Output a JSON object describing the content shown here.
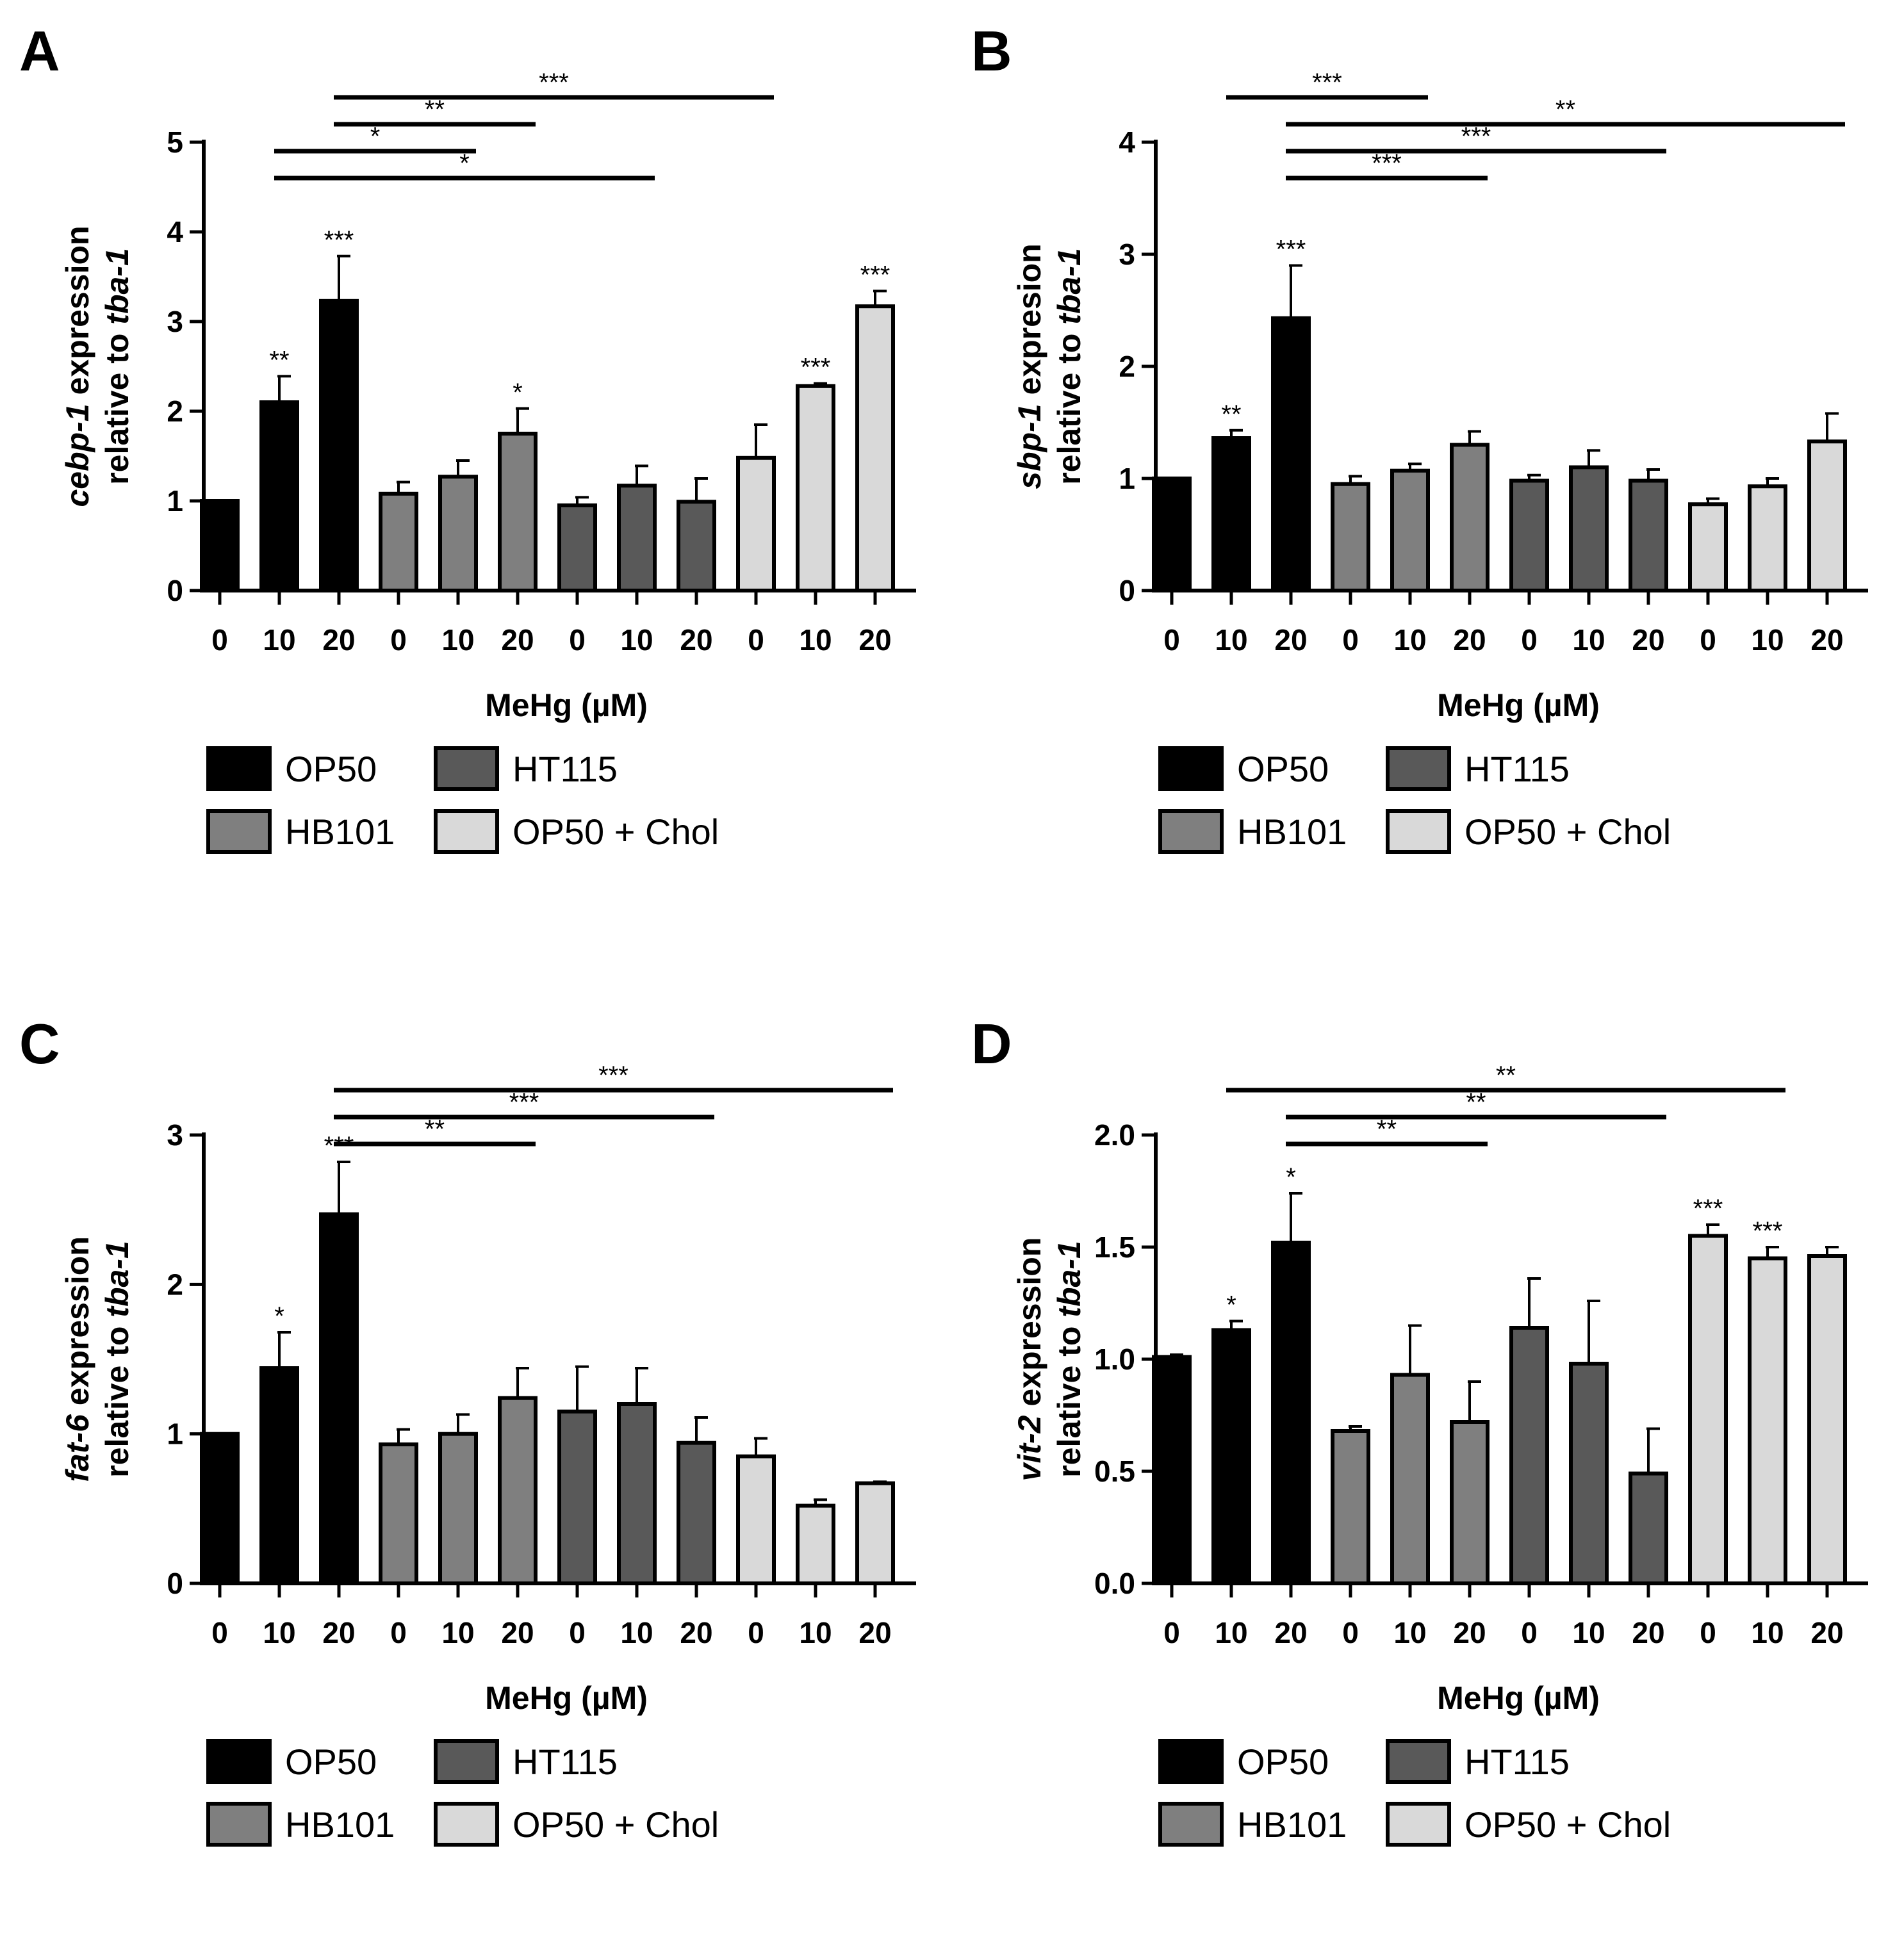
{
  "xlabel": "MeHg (µM)",
  "groups": [
    {
      "name": "OP50",
      "color": "#000000"
    },
    {
      "name": "HB101",
      "color": "#7f7f7f"
    },
    {
      "name": "HT115",
      "color": "#595959"
    },
    {
      "name": "OP50 + Chol",
      "color": "#d9d9d9"
    }
  ],
  "chart_data": [
    {
      "panel": "A",
      "type": "bar",
      "ylabel_gene": "cebp-1",
      "ylabel_rest1": " expression",
      "ylabel_line2_prefix": "relative to ",
      "ylabel_ref": "tba-1",
      "categories": [
        "0",
        "10",
        "20",
        "0",
        "10",
        "20",
        "0",
        "10",
        "20",
        "0",
        "10",
        "20"
      ],
      "category_groups": [
        "OP50",
        "OP50",
        "OP50",
        "HB101",
        "HB101",
        "HB101",
        "HT115",
        "HT115",
        "HT115",
        "OP50 + Chol",
        "OP50 + Chol",
        "OP50 + Chol"
      ],
      "values": [
        1.0,
        2.1,
        3.23,
        1.08,
        1.27,
        1.75,
        0.95,
        1.17,
        0.99,
        1.48,
        2.28,
        3.17
      ],
      "errors": [
        0,
        0.29,
        0.5,
        0.13,
        0.18,
        0.28,
        0.09,
        0.22,
        0.26,
        0.37,
        0.03,
        0.17
      ],
      "significance": [
        "",
        "**",
        "***",
        "",
        "",
        "*",
        "",
        "",
        "",
        "",
        "***",
        "***"
      ],
      "ylim": [
        0,
        5
      ],
      "yticks": [
        "0",
        "1",
        "2",
        "3",
        "4",
        "5"
      ],
      "yticks_values": [
        0,
        1,
        2,
        3,
        4,
        5
      ],
      "brackets": [
        {
          "from": 2,
          "to": 9,
          "label": "***"
        },
        {
          "from": 2,
          "to": 5,
          "label": "**"
        },
        {
          "from": 1,
          "to": 4,
          "label": "*"
        },
        {
          "from": 1,
          "to": 7,
          "label": "*"
        }
      ]
    },
    {
      "panel": "B",
      "type": "bar",
      "ylabel_gene": "sbp-1",
      "ylabel_rest1": " expresion",
      "ylabel_line2_prefix": "relative to ",
      "ylabel_ref": "tba-1",
      "categories": [
        "0",
        "10",
        "20",
        "0",
        "10",
        "20",
        "0",
        "10",
        "20",
        "0",
        "10",
        "20"
      ],
      "category_groups": [
        "OP50",
        "OP50",
        "OP50",
        "HB101",
        "HB101",
        "HB101",
        "HT115",
        "HT115",
        "HT115",
        "OP50 + Chol",
        "OP50 + Chol",
        "OP50 + Chol"
      ],
      "values": [
        1.0,
        1.36,
        2.43,
        0.95,
        1.07,
        1.3,
        0.98,
        1.1,
        0.98,
        0.77,
        0.93,
        1.33
      ],
      "errors": [
        0,
        0.07,
        0.47,
        0.07,
        0.06,
        0.12,
        0.05,
        0.15,
        0.1,
        0.05,
        0.07,
        0.25
      ],
      "significance": [
        "",
        "**",
        "***",
        "",
        "",
        "",
        "",
        "",
        "",
        "",
        "",
        ""
      ],
      "ylim": [
        0,
        4
      ],
      "yticks": [
        "0",
        "1",
        "2",
        "3",
        "4"
      ],
      "yticks_values": [
        0,
        1,
        2,
        3,
        4
      ],
      "brackets": [
        {
          "from": 1,
          "to": 4,
          "label": "***"
        },
        {
          "from": 2,
          "to": 11,
          "label": "**"
        },
        {
          "from": 2,
          "to": 8,
          "label": "***"
        },
        {
          "from": 2,
          "to": 5,
          "label": "***"
        }
      ]
    },
    {
      "panel": "C",
      "type": "bar",
      "ylabel_gene": "fat-6",
      "ylabel_rest1": " expression",
      "ylabel_line2_prefix": "relative to ",
      "ylabel_ref": "tba-1",
      "categories": [
        "0",
        "10",
        "20",
        "0",
        "10",
        "20",
        "0",
        "10",
        "20",
        "0",
        "10",
        "20"
      ],
      "category_groups": [
        "OP50",
        "OP50",
        "OP50",
        "HB101",
        "HB101",
        "HB101",
        "HT115",
        "HT115",
        "HT115",
        "OP50 + Chol",
        "OP50 + Chol",
        "OP50 + Chol"
      ],
      "values": [
        1.0,
        1.44,
        2.47,
        0.93,
        1.0,
        1.24,
        1.15,
        1.2,
        0.94,
        0.85,
        0.52,
        0.67
      ],
      "errors": [
        0,
        0.24,
        0.35,
        0.1,
        0.13,
        0.2,
        0.3,
        0.24,
        0.17,
        0.12,
        0.04,
        0.01
      ],
      "significance": [
        "",
        "*",
        "***",
        "",
        "",
        "",
        "",
        "",
        "",
        "",
        "",
        ""
      ],
      "ylim": [
        0,
        3
      ],
      "yticks": [
        "0",
        "1",
        "2",
        "3"
      ],
      "yticks_values": [
        0,
        1,
        2,
        3
      ],
      "brackets": [
        {
          "from": 2,
          "to": 11,
          "label": "***"
        },
        {
          "from": 2,
          "to": 8,
          "label": "***"
        },
        {
          "from": 2,
          "to": 5,
          "label": "**"
        }
      ]
    },
    {
      "panel": "D",
      "type": "bar",
      "ylabel_gene": "vit-2",
      "ylabel_rest1": " expression",
      "ylabel_line2_prefix": "relative to ",
      "ylabel_ref": "tba-1",
      "categories": [
        "0",
        "10",
        "20",
        "0",
        "10",
        "20",
        "0",
        "10",
        "20",
        "0",
        "10",
        "20"
      ],
      "category_groups": [
        "OP50",
        "OP50",
        "OP50",
        "HB101",
        "HB101",
        "HB101",
        "HT115",
        "HT115",
        "HT115",
        "OP50 + Chol",
        "OP50 + Chol",
        "OP50 + Chol"
      ],
      "values": [
        1.01,
        1.13,
        1.52,
        0.68,
        0.93,
        0.72,
        1.14,
        0.98,
        0.49,
        1.55,
        1.45,
        1.46
      ],
      "errors": [
        0.01,
        0.04,
        0.22,
        0.02,
        0.22,
        0.18,
        0.22,
        0.28,
        0.2,
        0.05,
        0.05,
        0.04
      ],
      "significance": [
        "",
        "*",
        "*",
        "",
        "",
        "",
        "",
        "",
        "",
        "***",
        "***",
        ""
      ],
      "ylim": [
        0,
        2
      ],
      "yticks": [
        "0.0",
        "0.5",
        "1.0",
        "1.5",
        "2.0"
      ],
      "yticks_values": [
        0,
        0.5,
        1,
        1.5,
        2
      ],
      "brackets": [
        {
          "from": 1,
          "to": 10,
          "label": "**"
        },
        {
          "from": 2,
          "to": 8,
          "label": "**"
        },
        {
          "from": 2,
          "to": 5,
          "label": "**"
        }
      ]
    }
  ]
}
